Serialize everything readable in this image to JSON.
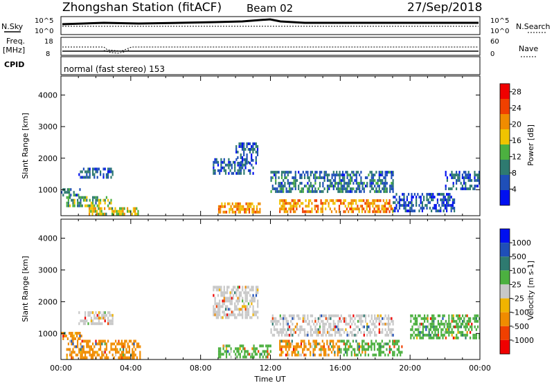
{
  "header": {
    "station_title": "Zhongshan Station (fitACF)",
    "beam": "Beam 02",
    "date": "27/Sep/2018"
  },
  "status_panels": {
    "nsky_label": "N.Sky",
    "nsearch_label": "N.Search",
    "freq_label_line1": "Freq.",
    "freq_label_line2": "[MHz]",
    "nave_label": "Nave",
    "cpid_label": "CPID",
    "cpid_text": "normal (fast stereo) 153",
    "noise_left_ticks": [
      "10^5",
      "10^0"
    ],
    "noise_right_ticks": [
      "10^5",
      "10^0"
    ],
    "freq_ticks": [
      "18",
      "8"
    ],
    "nave_ticks": [
      "60",
      "0"
    ]
  },
  "colors": {
    "power_scale": [
      "#0010f0",
      "#1f4fb8",
      "#2e7a70",
      "#4cb040",
      "#f0c400",
      "#f08c00",
      "#f04000",
      "#f00000"
    ],
    "velocity_scale": [
      "#f00000",
      "#f04000",
      "#f08c00",
      "#f0b400",
      "#c8c8c8",
      "#4cb040",
      "#2e7a70",
      "#1f4fb8",
      "#0010f0"
    ],
    "ground_scatter": "#c0c0c0"
  },
  "chart_data": [
    {
      "type": "heatmap",
      "name": "power",
      "xlabel": "",
      "ylabel": "Slant Range [km]",
      "xlim": [
        0,
        24
      ],
      "ylim": [
        180,
        4600
      ],
      "yticks": [
        1000,
        2000,
        3000,
        4000
      ],
      "colorbar": {
        "label": "Power [dB]",
        "ticks": [
          "4",
          "8",
          "12",
          "16",
          "20",
          "24",
          "28"
        ],
        "range": [
          0,
          30
        ]
      },
      "regions": [
        {
          "t0": 0.0,
          "t1": 1.2,
          "r0": 850,
          "r1": 1050,
          "level": 8
        },
        {
          "t0": 0.3,
          "t1": 3.0,
          "r0": 450,
          "r1": 800,
          "level": 12
        },
        {
          "t0": 1.5,
          "t1": 4.5,
          "r0": 250,
          "r1": 450,
          "level": 16
        },
        {
          "t0": 1.0,
          "t1": 3.0,
          "r0": 1350,
          "r1": 1700,
          "level": 6
        },
        {
          "t0": 8.7,
          "t1": 11.0,
          "r0": 1500,
          "r1": 2000,
          "level": 6
        },
        {
          "t0": 10.0,
          "t1": 11.3,
          "r0": 1800,
          "r1": 2500,
          "level": 6
        },
        {
          "t0": 9.0,
          "t1": 11.5,
          "r0": 300,
          "r1": 600,
          "level": 20
        },
        {
          "t0": 12.5,
          "t1": 19.0,
          "r0": 280,
          "r1": 700,
          "level": 20
        },
        {
          "t0": 12.0,
          "t1": 19.0,
          "r0": 950,
          "r1": 1600,
          "level": 8
        },
        {
          "t0": 19.0,
          "t1": 22.5,
          "r0": 300,
          "r1": 900,
          "level": 6
        },
        {
          "t0": 22.0,
          "t1": 24.0,
          "r0": 1000,
          "r1": 1600,
          "level": 6
        }
      ]
    },
    {
      "type": "heatmap",
      "name": "velocity",
      "xlabel": "Time UT",
      "ylabel": "Slant Range [km]",
      "xlim": [
        0,
        24
      ],
      "ylim": [
        180,
        4600
      ],
      "xticks": [
        "00:00",
        "04:00",
        "08:00",
        "12:00",
        "16:00",
        "20:00",
        "00:00"
      ],
      "yticks": [
        1000,
        2000,
        3000,
        4000
      ],
      "colorbar": {
        "label": "Velocity [m s-1]",
        "ticks": [
          "1000",
          "500",
          "100",
          "25",
          "-25",
          "-100",
          "-500",
          "-1000"
        ]
      },
      "regions": [
        {
          "t0": 0.0,
          "t1": 1.2,
          "r0": 850,
          "r1": 1050,
          "level": "-100"
        },
        {
          "t0": 0.3,
          "t1": 4.5,
          "r0": 250,
          "r1": 800,
          "level": "-100"
        },
        {
          "t0": 1.0,
          "t1": 3.0,
          "r0": 1350,
          "r1": 1700,
          "level": "25"
        },
        {
          "t0": 8.7,
          "t1": 11.3,
          "r0": 1500,
          "r1": 2500,
          "level": "25"
        },
        {
          "t0": 9.0,
          "t1": 12.0,
          "r0": 300,
          "r1": 650,
          "level": "100"
        },
        {
          "t0": 12.5,
          "t1": 16.0,
          "r0": 300,
          "r1": 800,
          "level": "-100"
        },
        {
          "t0": 16.0,
          "t1": 19.5,
          "r0": 280,
          "r1": 800,
          "level": "100"
        },
        {
          "t0": 12.0,
          "t1": 19.0,
          "r0": 950,
          "r1": 1600,
          "level": "25"
        },
        {
          "t0": 20.0,
          "t1": 24.0,
          "r0": 900,
          "r1": 1600,
          "level": "100"
        }
      ]
    }
  ]
}
